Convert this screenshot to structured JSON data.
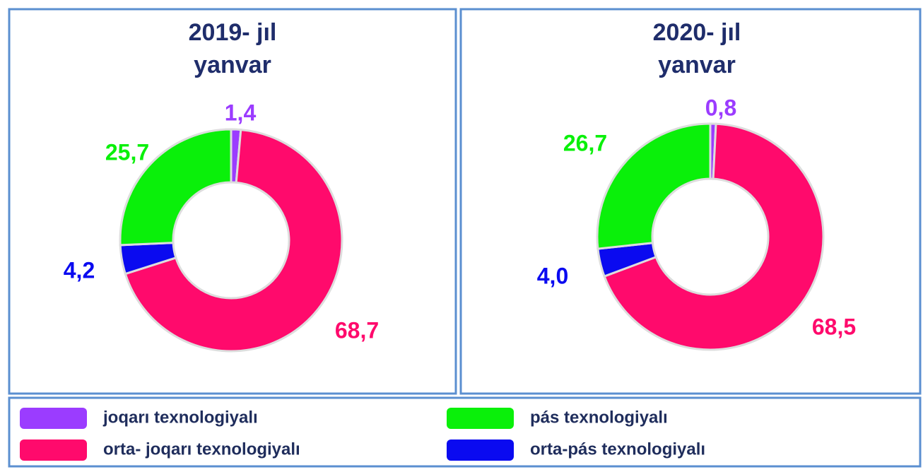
{
  "chart_data": [
    {
      "type": "pie",
      "title": "2019- jıl",
      "subtitle": "yanvar",
      "categories": [
        "joqarı texnologiyalı",
        "orta- joqarı texnologiyalı",
        "orta-pás texnologiyalı",
        "pás texnologiyalı"
      ],
      "values": [
        1.4,
        68.7,
        4.2,
        25.7
      ],
      "value_labels": [
        "1,4",
        "68,7",
        "4,2",
        "25,7"
      ],
      "colors": [
        "#9b3cff",
        "#ff0a6c",
        "#0a0af0",
        "#0af00a"
      ]
    },
    {
      "type": "pie",
      "title": "2020- jıl",
      "subtitle": "yanvar",
      "categories": [
        "joqarı texnologiyalı",
        "orta- joqarı texnologiyalı",
        "orta-pás texnologiyalı",
        "pás texnologiyalı"
      ],
      "values": [
        0.8,
        68.5,
        4.0,
        26.7
      ],
      "value_labels": [
        "0,8",
        "68,5",
        "4,0",
        "26,7"
      ],
      "colors": [
        "#9b3cff",
        "#ff0a6c",
        "#0a0af0",
        "#0af00a"
      ]
    }
  ]
}
